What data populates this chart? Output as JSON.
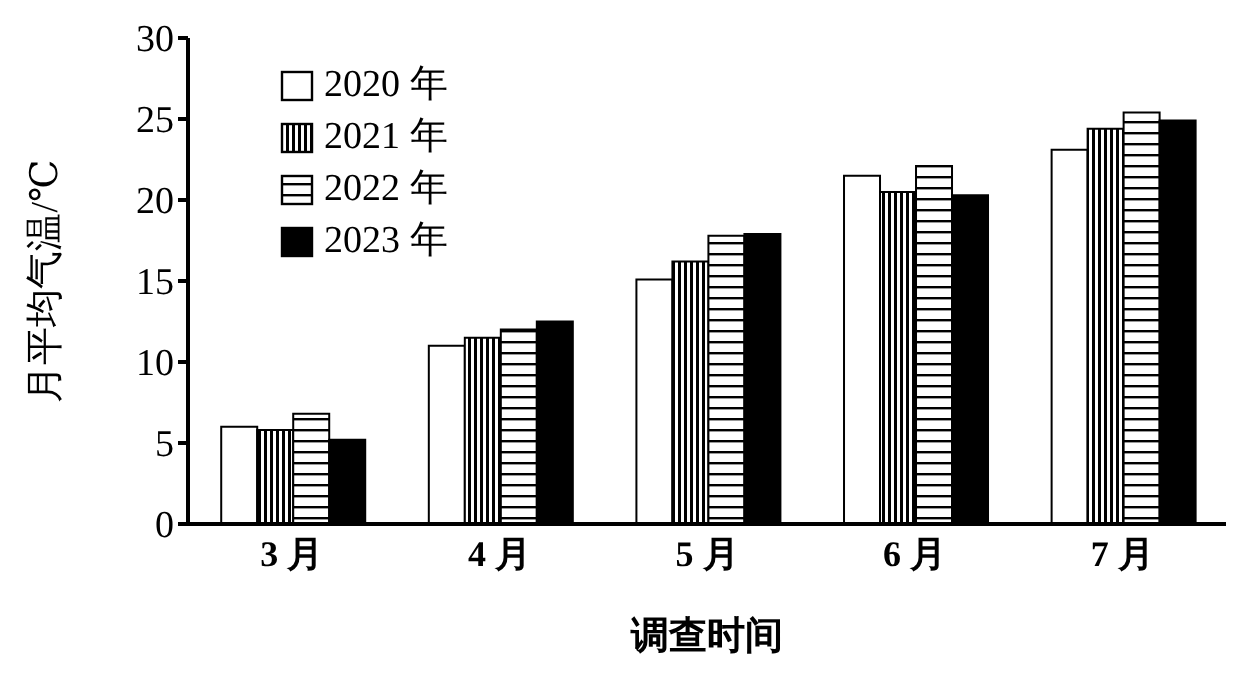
{
  "chart_data": {
    "type": "bar",
    "xlabel": "调查时间",
    "ylabel": "月平均气温/℃",
    "categories": [
      "3 月",
      "4 月",
      "5 月",
      "6 月",
      "7 月"
    ],
    "series": [
      {
        "name": "2020 年",
        "color": "#ffffff",
        "values": [
          6.0,
          11.0,
          15.1,
          21.5,
          23.1
        ]
      },
      {
        "name": "2021 年",
        "color": "#000000",
        "values": [
          5.8,
          11.5,
          16.2,
          20.5,
          24.4
        ]
      },
      {
        "name": "2022 年",
        "color": "#000000",
        "values": [
          6.8,
          12.0,
          17.8,
          22.1,
          25.4
        ]
      },
      {
        "name": "2023 年",
        "color": "#000000",
        "values": [
          5.2,
          12.5,
          17.9,
          20.3,
          24.9
        ]
      }
    ],
    "ylim": [
      0,
      30
    ],
    "yticks": [
      0,
      5,
      10,
      15,
      20,
      25,
      30
    ],
    "grid": false,
    "legend": "top left"
  }
}
